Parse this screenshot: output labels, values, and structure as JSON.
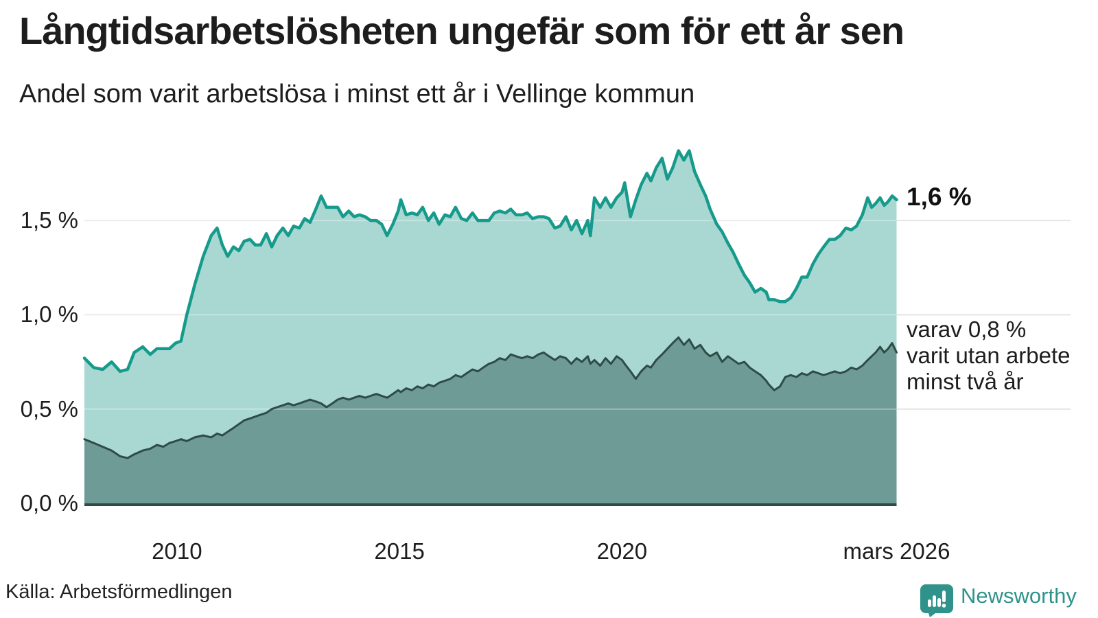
{
  "title": "Långtidsarbetslösheten ungefär som för ett år sen",
  "subtitle": "Andel som varit arbetslösa i minst ett år i Vellinge kommun",
  "source": "Källa: Arbetsförmedlingen",
  "branding": {
    "name": "Newsworthy",
    "icon": "newsworthy-speech-bubble-bar-chart-icon",
    "color": "#2f938b"
  },
  "annotations": {
    "latest_total": "1,6 %",
    "secondary": "varav 0,8 %\nvarit utan arbete\nminst två år"
  },
  "colors": {
    "line_total": "#169a8b",
    "fill_total": "#a9d8d2",
    "line_two_year": "#2e4b47",
    "fill_two_year": "#6f9b96",
    "grid": "#e4e4e4",
    "grid_overlay": "rgba(255,255,255,0.32)",
    "axis": "#2e4b47",
    "text": "#1d1d1d"
  },
  "chart_data": {
    "type": "area",
    "title": "Långtidsarbetslösheten ungefär som för ett år sen",
    "xlabel": "",
    "ylabel": "",
    "grid": true,
    "legend_position": "right-annotations",
    "x_axis": {
      "range": [
        2007.92,
        2026.17
      ],
      "ticks": [
        {
          "label": "2010",
          "year": 2010
        },
        {
          "label": "2015",
          "year": 2015
        },
        {
          "label": "2020",
          "year": 2020
        },
        {
          "label": "mars 2026",
          "year": 2026.17
        }
      ]
    },
    "y_axis": {
      "range": [
        0,
        1.9
      ],
      "unit": "%",
      "gridlines": [
        0.5,
        1.0,
        1.5
      ],
      "ticks": [
        {
          "label": "0,0 %",
          "value": 0.0
        },
        {
          "label": "0,5 %",
          "value": 0.5
        },
        {
          "label": "1,0 %",
          "value": 1.0
        },
        {
          "label": "1,5 %",
          "value": 1.5
        }
      ]
    },
    "x": [
      2007.92,
      2008.13,
      2008.33,
      2008.53,
      2008.72,
      2008.89,
      2009.04,
      2009.23,
      2009.4,
      2009.55,
      2009.69,
      2009.83,
      2009.97,
      2010.09,
      2010.22,
      2010.4,
      2010.59,
      2010.77,
      2010.9,
      2011.02,
      2011.14,
      2011.27,
      2011.39,
      2011.51,
      2011.64,
      2011.76,
      2011.88,
      2012.01,
      2012.13,
      2012.25,
      2012.38,
      2012.5,
      2012.62,
      2012.75,
      2012.87,
      2012.99,
      2013.12,
      2013.24,
      2013.36,
      2013.49,
      2013.61,
      2013.73,
      2013.86,
      2013.98,
      2014.1,
      2014.23,
      2014.35,
      2014.48,
      2014.6,
      2014.72,
      2014.85,
      2014.97,
      2015.03,
      2015.15,
      2015.28,
      2015.4,
      2015.52,
      2015.65,
      2015.77,
      2015.89,
      2016.02,
      2016.14,
      2016.26,
      2016.39,
      2016.51,
      2016.64,
      2016.76,
      2016.88,
      2017.01,
      2017.13,
      2017.25,
      2017.38,
      2017.5,
      2017.62,
      2017.75,
      2017.87,
      2017.99,
      2018.12,
      2018.24,
      2018.36,
      2018.49,
      2018.61,
      2018.74,
      2018.86,
      2018.98,
      2019.1,
      2019.23,
      2019.29,
      2019.38,
      2019.51,
      2019.63,
      2019.75,
      2019.88,
      2020.0,
      2020.06,
      2020.19,
      2020.31,
      2020.43,
      2020.56,
      2020.65,
      2020.77,
      2020.9,
      2021.02,
      2021.14,
      2021.27,
      2021.39,
      2021.51,
      2021.63,
      2021.76,
      2021.88,
      2021.98,
      2022.13,
      2022.25,
      2022.38,
      2022.5,
      2022.62,
      2022.75,
      2022.87,
      2022.99,
      2023.12,
      2023.24,
      2023.3,
      2023.42,
      2023.55,
      2023.67,
      2023.79,
      2023.92,
      2024.04,
      2024.16,
      2024.29,
      2024.41,
      2024.53,
      2024.66,
      2024.78,
      2024.9,
      2025.03,
      2025.15,
      2025.27,
      2025.4,
      2025.52,
      2025.61,
      2025.7,
      2025.8,
      2025.89,
      2025.98,
      2026.07,
      2026.17
    ],
    "series": [
      {
        "name": "Andel arbetslösa minst ett år",
        "color": "#169a8b",
        "fill": "#a9d8d2",
        "line_width": 4.5,
        "values": [
          0.77,
          0.72,
          0.71,
          0.75,
          0.7,
          0.71,
          0.8,
          0.83,
          0.79,
          0.82,
          0.82,
          0.82,
          0.85,
          0.86,
          1.0,
          1.16,
          1.31,
          1.42,
          1.46,
          1.37,
          1.31,
          1.36,
          1.34,
          1.39,
          1.4,
          1.37,
          1.37,
          1.43,
          1.36,
          1.42,
          1.46,
          1.42,
          1.47,
          1.46,
          1.51,
          1.49,
          1.56,
          1.63,
          1.57,
          1.57,
          1.57,
          1.52,
          1.55,
          1.52,
          1.53,
          1.52,
          1.5,
          1.5,
          1.48,
          1.42,
          1.48,
          1.55,
          1.61,
          1.53,
          1.54,
          1.53,
          1.57,
          1.5,
          1.54,
          1.48,
          1.53,
          1.52,
          1.57,
          1.51,
          1.5,
          1.54,
          1.5,
          1.5,
          1.5,
          1.54,
          1.55,
          1.54,
          1.56,
          1.53,
          1.53,
          1.54,
          1.51,
          1.52,
          1.52,
          1.51,
          1.46,
          1.47,
          1.52,
          1.45,
          1.5,
          1.43,
          1.5,
          1.42,
          1.62,
          1.57,
          1.62,
          1.57,
          1.62,
          1.65,
          1.7,
          1.52,
          1.61,
          1.69,
          1.75,
          1.71,
          1.78,
          1.83,
          1.72,
          1.78,
          1.87,
          1.82,
          1.87,
          1.76,
          1.69,
          1.63,
          1.56,
          1.48,
          1.44,
          1.38,
          1.33,
          1.27,
          1.21,
          1.17,
          1.12,
          1.14,
          1.12,
          1.08,
          1.08,
          1.07,
          1.07,
          1.09,
          1.14,
          1.2,
          1.2,
          1.27,
          1.32,
          1.36,
          1.4,
          1.4,
          1.42,
          1.46,
          1.45,
          1.47,
          1.53,
          1.62,
          1.57,
          1.59,
          1.62,
          1.58,
          1.6,
          1.63,
          1.61
        ]
      },
      {
        "name": "varav utan arbete minst två år",
        "color": "#2e4b47",
        "fill": "#6f9b96",
        "line_width": 3,
        "values": [
          0.34,
          0.32,
          0.3,
          0.28,
          0.25,
          0.24,
          0.26,
          0.28,
          0.29,
          0.31,
          0.3,
          0.32,
          0.33,
          0.34,
          0.33,
          0.35,
          0.36,
          0.35,
          0.37,
          0.36,
          0.38,
          0.4,
          0.42,
          0.44,
          0.45,
          0.46,
          0.47,
          0.48,
          0.5,
          0.51,
          0.52,
          0.53,
          0.52,
          0.53,
          0.54,
          0.55,
          0.54,
          0.53,
          0.51,
          0.53,
          0.55,
          0.56,
          0.55,
          0.56,
          0.57,
          0.56,
          0.57,
          0.58,
          0.57,
          0.56,
          0.58,
          0.6,
          0.59,
          0.61,
          0.6,
          0.62,
          0.61,
          0.63,
          0.62,
          0.64,
          0.65,
          0.66,
          0.68,
          0.67,
          0.69,
          0.71,
          0.7,
          0.72,
          0.74,
          0.75,
          0.77,
          0.76,
          0.79,
          0.78,
          0.77,
          0.78,
          0.77,
          0.79,
          0.8,
          0.78,
          0.76,
          0.78,
          0.77,
          0.74,
          0.77,
          0.75,
          0.78,
          0.74,
          0.76,
          0.73,
          0.77,
          0.74,
          0.78,
          0.76,
          0.74,
          0.7,
          0.66,
          0.7,
          0.73,
          0.72,
          0.76,
          0.79,
          0.82,
          0.85,
          0.88,
          0.84,
          0.87,
          0.82,
          0.84,
          0.8,
          0.78,
          0.8,
          0.75,
          0.78,
          0.76,
          0.74,
          0.75,
          0.72,
          0.7,
          0.68,
          0.65,
          0.63,
          0.6,
          0.62,
          0.67,
          0.68,
          0.67,
          0.69,
          0.68,
          0.7,
          0.69,
          0.68,
          0.69,
          0.7,
          0.69,
          0.7,
          0.72,
          0.71,
          0.73,
          0.76,
          0.78,
          0.8,
          0.83,
          0.8,
          0.82,
          0.85,
          0.8
        ]
      }
    ]
  }
}
